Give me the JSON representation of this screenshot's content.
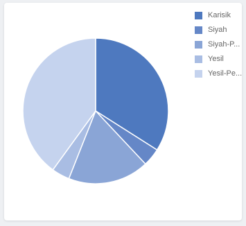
{
  "chart_data": {
    "type": "pie",
    "categories": [
      "Karisik",
      "Siyah",
      "Siyah-P...",
      "Yesil",
      "Yesil-Pe..."
    ],
    "values": [
      34,
      4,
      18,
      4,
      40
    ],
    "colors": [
      "#4e79bf",
      "#6587c7",
      "#8aa5d6",
      "#a9bde3",
      "#c5d3ee"
    ],
    "legend_position": "top-right",
    "start_angle_deg": 0,
    "direction": "clockwise"
  }
}
